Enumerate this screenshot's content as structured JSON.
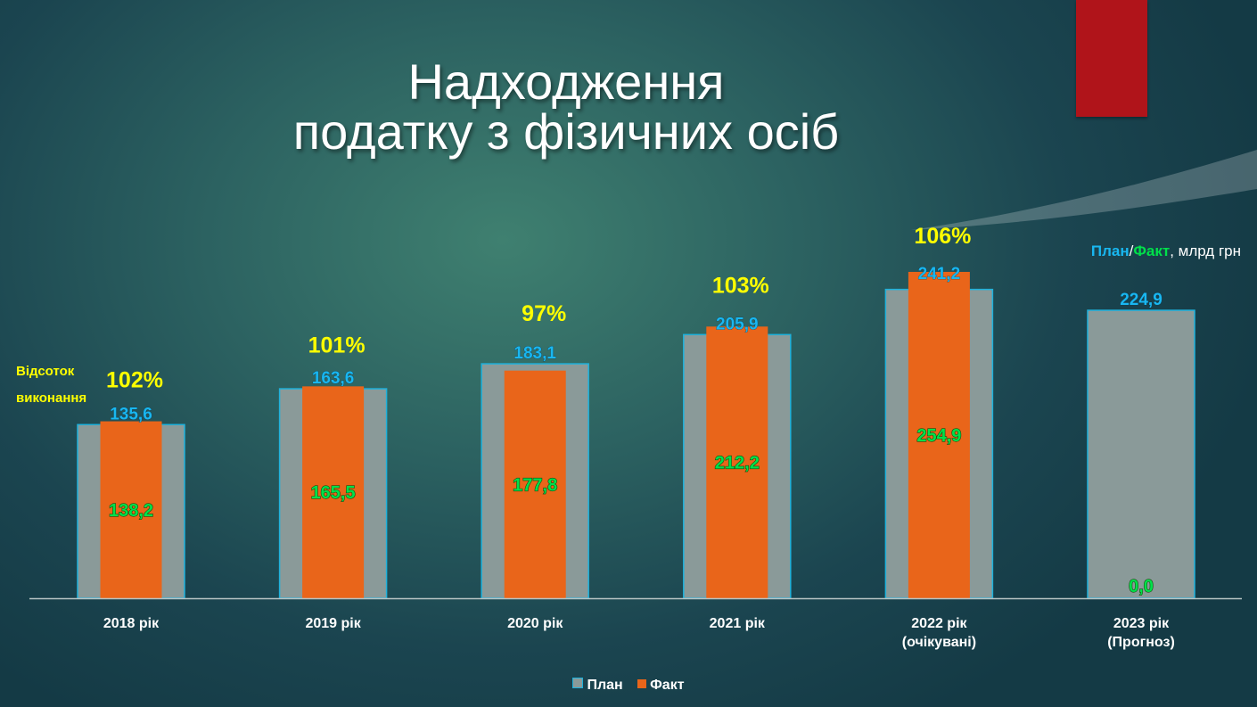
{
  "title_lines": [
    "Надходження",
    "податку з фізичних осіб"
  ],
  "side_label_lines": [
    "Відсоток",
    "виконання"
  ],
  "unit_label": {
    "plan": "План",
    "sep": "/",
    "fact": "Факт",
    "rest": ", млрд грн"
  },
  "legend": {
    "plan": "План",
    "fact": "Факт"
  },
  "colors": {
    "plan_fill": "#8a9a99",
    "plan_border": "#1fb2dc",
    "fact_fill": "#e9651a",
    "plan_label": "#19b7f0",
    "fact_label": "#00e04a",
    "percent_label": "#ffff00",
    "axis": "#b8c4c4",
    "accent_stripe": "#b0141a"
  },
  "chart_data": {
    "type": "bar",
    "unit": "млрд грн",
    "ylim": [
      0,
      260
    ],
    "categories": [
      [
        "2018 рік"
      ],
      [
        "2019 рік"
      ],
      [
        "2020 рік"
      ],
      [
        "2021 рік"
      ],
      [
        "2022 рік",
        "(очікувані)"
      ],
      [
        "2023 рік",
        "(Прогноз)"
      ]
    ],
    "series": [
      {
        "name": "План",
        "values": [
          135.6,
          163.6,
          183.1,
          205.9,
          241.2,
          224.9
        ],
        "labels": [
          "135,6",
          "163,6",
          "183,1",
          "205,9",
          "241,2",
          "224,9"
        ]
      },
      {
        "name": "Факт",
        "values": [
          138.2,
          165.5,
          177.8,
          212.2,
          254.9,
          0.0
        ],
        "labels": [
          "138,2",
          "165,5",
          "177,8",
          "212,2",
          "254,9",
          "0,0"
        ]
      }
    ],
    "percent_labels": [
      "102%",
      "101%",
      "97%",
      "103%",
      "106%",
      null
    ],
    "grid": false,
    "legend_position": "bottom"
  }
}
